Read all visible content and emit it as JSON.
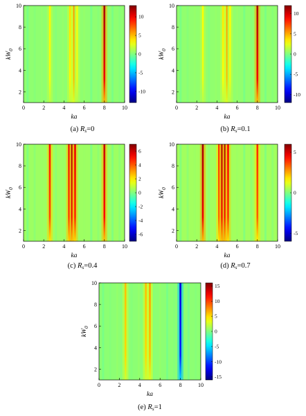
{
  "chart_data": [
    {
      "type": "heatmap",
      "caption": "(a) R",
      "caption_sub": "s",
      "caption_value": "=0",
      "xlabel": "ka",
      "ylabel": "kW",
      "ylabel_sub": "0",
      "xlim": [
        0,
        10
      ],
      "ylim": [
        1,
        10
      ],
      "xticks": [
        "0",
        "2",
        "4",
        "6",
        "8",
        "10"
      ],
      "yticks": [
        "2",
        "4",
        "6",
        "8",
        "10"
      ],
      "colorbar": {
        "clim": [
          -13,
          13
        ],
        "ticks": [
          10,
          5,
          0,
          -5,
          -10
        ]
      },
      "bands": [
        {
          "ka": 2.6,
          "value": 3.5
        },
        {
          "ka": 4.6,
          "value": 4
        },
        {
          "ka": 5.0,
          "value": 6
        },
        {
          "ka": 5.3,
          "value": 3
        },
        {
          "ka": 8.0,
          "value": 12
        }
      ]
    },
    {
      "type": "heatmap",
      "caption": "(b) R",
      "caption_sub": "s",
      "caption_value": "=0.1",
      "xlabel": "ka",
      "ylabel": "kW",
      "ylabel_sub": "0",
      "xlim": [
        0,
        10
      ],
      "ylim": [
        1,
        10
      ],
      "xticks": [
        "0",
        "2",
        "4",
        "6",
        "8",
        "10"
      ],
      "yticks": [
        "2",
        "4",
        "6",
        "8",
        "10"
      ],
      "colorbar": {
        "clim": [
          -12,
          12
        ],
        "ticks": [
          10,
          5,
          0,
          -5,
          -10
        ]
      },
      "bands": [
        {
          "ka": 2.6,
          "value": 3
        },
        {
          "ka": 4.6,
          "value": 3.5
        },
        {
          "ka": 5.0,
          "value": 5.5
        },
        {
          "ka": 5.3,
          "value": 3
        },
        {
          "ka": 8.0,
          "value": 11
        }
      ]
    },
    {
      "type": "heatmap",
      "caption": "(c) R",
      "caption_sub": "s",
      "caption_value": "=0.4",
      "xlabel": "ka",
      "ylabel": "kW",
      "ylabel_sub": "0",
      "xlim": [
        0,
        10
      ],
      "ylim": [
        1,
        10
      ],
      "xticks": [
        "0",
        "2",
        "4",
        "6",
        "8",
        "10"
      ],
      "yticks": [
        "2",
        "4",
        "6",
        "8",
        "10"
      ],
      "colorbar": {
        "clim": [
          -7,
          7
        ],
        "ticks": [
          6,
          4,
          2,
          0,
          -2,
          -4,
          -6
        ]
      },
      "bands": [
        {
          "ka": 2.6,
          "value": 5
        },
        {
          "ka": 4.5,
          "value": 5.5
        },
        {
          "ka": 4.8,
          "value": 6.5
        },
        {
          "ka": 5.1,
          "value": 5.5
        },
        {
          "ka": 8.0,
          "value": 6
        }
      ]
    },
    {
      "type": "heatmap",
      "caption": "(d) R",
      "caption_sub": "s",
      "caption_value": "=0.7",
      "xlabel": "ka",
      "ylabel": "kW",
      "ylabel_sub": "0",
      "xlim": [
        0,
        10
      ],
      "ylim": [
        1,
        10
      ],
      "xticks": [
        "0",
        "2",
        "4",
        "6",
        "8",
        "10"
      ],
      "yticks": [
        "2",
        "4",
        "6",
        "8",
        "10"
      ],
      "colorbar": {
        "clim": [
          -6,
          6
        ],
        "ticks": [
          5,
          0,
          -5
        ]
      },
      "bands": [
        {
          "ka": 2.6,
          "value": 5.5
        },
        {
          "ka": 4.2,
          "value": 4
        },
        {
          "ka": 4.5,
          "value": 5.5
        },
        {
          "ka": 4.8,
          "value": 5.5
        },
        {
          "ka": 5.1,
          "value": 4.5
        },
        {
          "ka": 8.0,
          "value": 4
        }
      ]
    },
    {
      "type": "heatmap",
      "caption": "(e) R",
      "caption_sub": "s",
      "caption_value": "=1",
      "xlabel": "ka",
      "ylabel": "kW",
      "ylabel_sub": "0",
      "xlim": [
        0,
        10
      ],
      "ylim": [
        1,
        10
      ],
      "xticks": [
        "0",
        "2",
        "4",
        "6",
        "8",
        "10"
      ],
      "yticks": [
        "2",
        "4",
        "6",
        "8",
        "10"
      ],
      "colorbar": {
        "clim": [
          -16,
          16
        ],
        "ticks": [
          15,
          10,
          5,
          0,
          -5,
          -10,
          -15
        ]
      },
      "bands": [
        {
          "ka": 2.6,
          "value": 6
        },
        {
          "ka": 4.6,
          "value": 6
        },
        {
          "ka": 5.0,
          "value": 7
        },
        {
          "ka": 8.0,
          "value": -13
        }
      ]
    }
  ]
}
